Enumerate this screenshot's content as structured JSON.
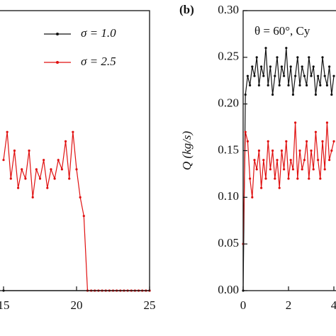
{
  "chart_data": [
    {
      "type": "line",
      "xlim": [
        10,
        25
      ],
      "ylim": [
        0,
        0.3
      ],
      "xticks": [
        15,
        20,
        25
      ],
      "legend": "upper right",
      "series": [
        {
          "name": "σ = 1.0",
          "color": "#111111",
          "x": [
            15,
            25
          ],
          "values": [
            0,
            0
          ]
        },
        {
          "name": "σ = 2.5",
          "color": "#e01010",
          "x": [
            15,
            15.25,
            15.5,
            15.75,
            16,
            16.25,
            16.5,
            16.75,
            17,
            17.25,
            17.5,
            17.75,
            18,
            18.25,
            18.5,
            18.75,
            19,
            19.25,
            19.5,
            19.75,
            20,
            20.25,
            20.5,
            20.75,
            21,
            21.25,
            21.5,
            21.75,
            22,
            22.25,
            22.5,
            22.75,
            23,
            23.25,
            23.5,
            23.75,
            24,
            24.25,
            24.5,
            24.75,
            25
          ],
          "values": [
            0.14,
            0.17,
            0.12,
            0.15,
            0.11,
            0.13,
            0.12,
            0.15,
            0.1,
            0.13,
            0.12,
            0.14,
            0.11,
            0.13,
            0.12,
            0.14,
            0.13,
            0.16,
            0.12,
            0.17,
            0.13,
            0.1,
            0.08,
            0,
            0,
            0,
            0,
            0,
            0,
            0,
            0,
            0,
            0,
            0,
            0,
            0,
            0,
            0,
            0,
            0,
            0
          ]
        }
      ]
    },
    {
      "type": "line",
      "panel_label": "(b)",
      "ylabel": "Q (kg/s)",
      "annotation": "θ = 60°, Cy",
      "xlim": [
        0,
        5
      ],
      "ylim": [
        0,
        0.3
      ],
      "xticks": [
        0,
        2,
        4
      ],
      "yticks": [
        {
          "value": 0,
          "label": "0.00"
        },
        {
          "value": 0.05,
          "label": "0.05"
        },
        {
          "value": 0.1,
          "label": "0.10"
        },
        {
          "value": 0.15,
          "label": "0.15"
        },
        {
          "value": 0.2,
          "label": "0.20"
        },
        {
          "value": 0.25,
          "label": "0.25"
        },
        {
          "value": 0.3,
          "label": "0.30"
        }
      ],
      "series": [
        {
          "name": "σ = 1.0",
          "color": "#111111",
          "x": [
            0,
            0.1,
            0.2,
            0.3,
            0.4,
            0.5,
            0.6,
            0.7,
            0.8,
            0.9,
            1,
            1.1,
            1.2,
            1.3,
            1.4,
            1.5,
            1.6,
            1.7,
            1.8,
            1.9,
            2,
            2.1,
            2.2,
            2.3,
            2.4,
            2.5,
            2.6,
            2.7,
            2.8,
            2.9,
            3,
            3.1,
            3.2,
            3.3,
            3.4,
            3.5,
            3.6,
            3.7,
            3.8,
            3.9,
            4
          ],
          "values": [
            0,
            0.21,
            0.23,
            0.22,
            0.24,
            0.23,
            0.25,
            0.22,
            0.24,
            0.23,
            0.26,
            0.22,
            0.24,
            0.21,
            0.23,
            0.25,
            0.22,
            0.24,
            0.23,
            0.26,
            0.22,
            0.24,
            0.21,
            0.23,
            0.25,
            0.22,
            0.24,
            0.23,
            0.22,
            0.25,
            0.23,
            0.24,
            0.21,
            0.23,
            0.22,
            0.25,
            0.23,
            0.22,
            0.24,
            0.21,
            0.23
          ]
        },
        {
          "name": "σ = 2.5",
          "color": "#e01010",
          "x": [
            0,
            0.1,
            0.2,
            0.3,
            0.4,
            0.5,
            0.6,
            0.7,
            0.8,
            0.9,
            1,
            1.1,
            1.2,
            1.3,
            1.4,
            1.5,
            1.6,
            1.7,
            1.8,
            1.9,
            2,
            2.1,
            2.2,
            2.3,
            2.4,
            2.5,
            2.6,
            2.7,
            2.8,
            2.9,
            3,
            3.1,
            3.2,
            3.3,
            3.4,
            3.5,
            3.6,
            3.7,
            3.8,
            3.9,
            4
          ],
          "values": [
            0.05,
            0.17,
            0.16,
            0.12,
            0.1,
            0.14,
            0.13,
            0.15,
            0.11,
            0.14,
            0.12,
            0.16,
            0.13,
            0.15,
            0.12,
            0.14,
            0.11,
            0.15,
            0.13,
            0.16,
            0.12,
            0.14,
            0.13,
            0.18,
            0.12,
            0.15,
            0.13,
            0.14,
            0.16,
            0.12,
            0.15,
            0.13,
            0.17,
            0.14,
            0.12,
            0.16,
            0.13,
            0.18,
            0.14,
            0.15,
            0.16
          ]
        }
      ]
    }
  ]
}
